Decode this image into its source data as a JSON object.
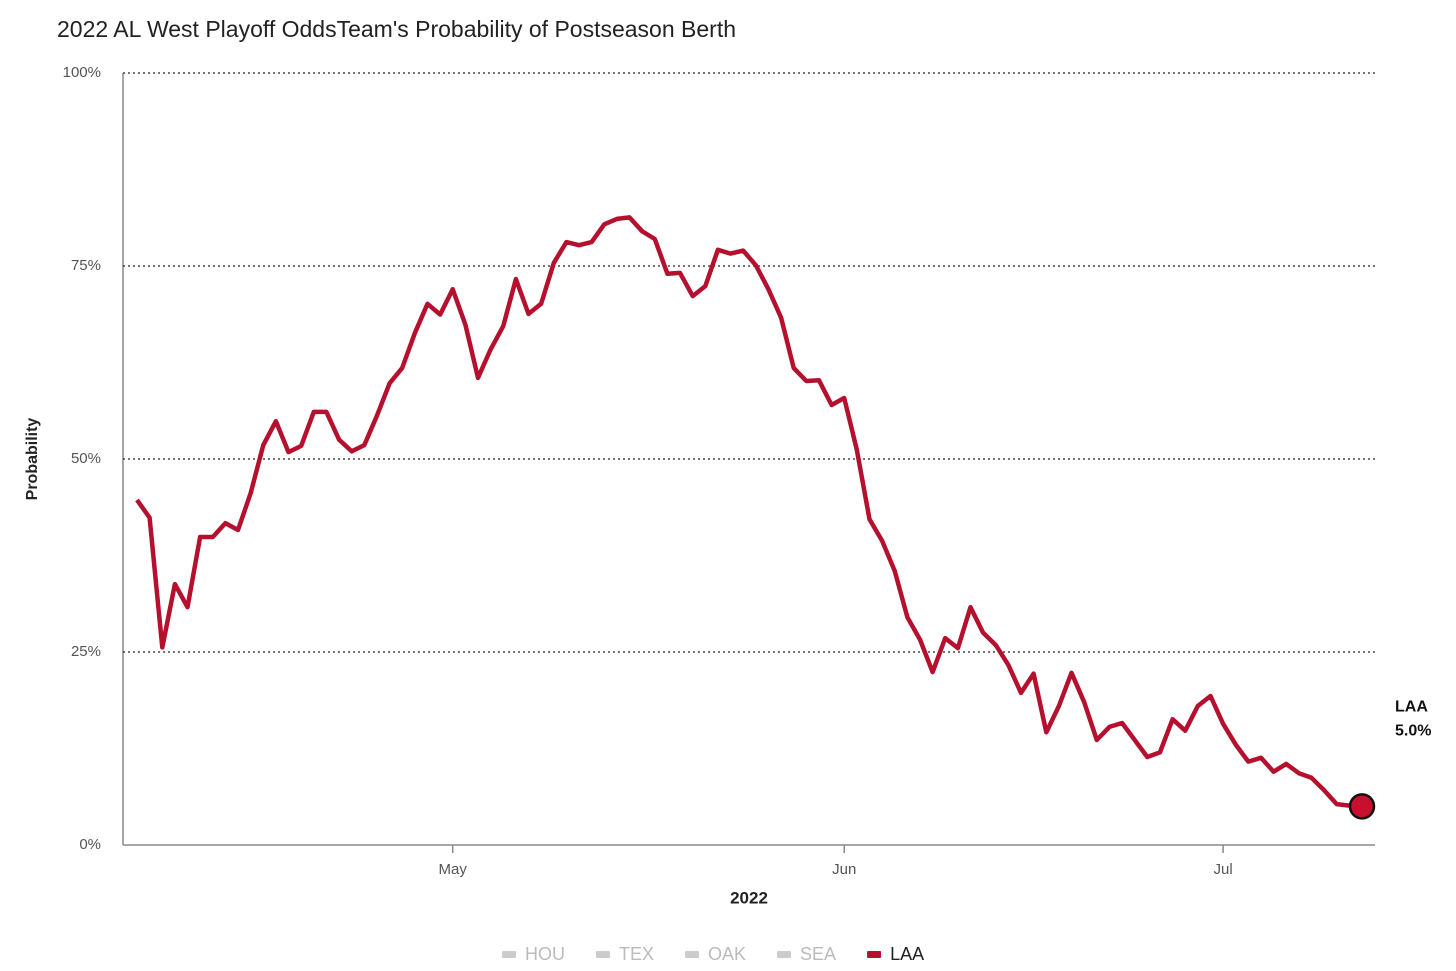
{
  "chart_data": {
    "type": "line",
    "title": "2022 AL West Playoff OddsTeam's Probability of Postseason Berth",
    "y_label": "Probability",
    "x_label": "2022",
    "categories": [
      null,
      null,
      null,
      null,
      null,
      null,
      null,
      null,
      null,
      null,
      null,
      null,
      null,
      null,
      null,
      null,
      null,
      null,
      null,
      null,
      null,
      null,
      null,
      null,
      null,
      "May",
      null,
      null,
      null,
      null,
      null,
      null,
      null,
      null,
      null,
      null,
      null,
      null,
      null,
      null,
      null,
      null,
      null,
      null,
      null,
      null,
      null,
      null,
      null,
      null,
      null,
      null,
      null,
      null,
      null,
      null,
      "Jun",
      null,
      null,
      null,
      null,
      null,
      null,
      null,
      null,
      null,
      null,
      null,
      null,
      null,
      null,
      null,
      null,
      null,
      null,
      null,
      null,
      null,
      null,
      null,
      null,
      null,
      null,
      null,
      null,
      null,
      "Jul",
      null,
      null,
      null,
      null,
      null,
      null,
      null,
      null,
      null,
      null,
      null
    ],
    "series": [
      {
        "name": "LAA",
        "color": "#b5112f",
        "values": [
          44.7,
          42.4,
          25.6,
          33.8,
          30.8,
          39.9,
          39.9,
          41.7,
          40.8,
          45.6,
          51.8,
          54.9,
          50.9,
          51.7,
          56.1,
          56.1,
          52.5,
          51.0,
          51.8,
          55.6,
          59.8,
          61.8,
          66.3,
          70.1,
          68.7,
          72.0,
          67.4,
          60.5,
          64.2,
          67.2,
          73.3,
          68.8,
          70.1,
          75.4,
          78.1,
          77.7,
          78.1,
          80.4,
          81.1,
          81.3,
          79.5,
          78.5,
          74.0,
          74.1,
          71.1,
          72.4,
          77.1,
          76.6,
          77.0,
          75.1,
          72.0,
          68.3,
          61.8,
          60.1,
          60.2,
          57.0,
          57.9,
          51.2,
          42.2,
          39.4,
          35.5,
          29.5,
          26.6,
          22.4,
          26.8,
          25.5,
          30.8,
          27.5,
          25.9,
          23.3,
          19.7,
          22.2,
          14.6,
          18.0,
          22.3,
          18.5,
          13.6,
          15.3,
          15.8,
          13.6,
          11.4,
          12.0,
          16.3,
          14.8,
          18.0,
          19.3,
          15.7,
          13.0,
          10.8,
          11.3,
          9.5,
          10.5,
          9.3,
          8.7,
          7.1,
          5.3,
          5.1,
          5.0
        ]
      }
    ],
    "end_label": "5.0%",
    "hidden_series": [
      {
        "name": "HOU",
        "color": "#cccccc"
      },
      {
        "name": "TEX",
        "color": "#cccccc"
      },
      {
        "name": "OAK",
        "color": "#cccccc"
      },
      {
        "name": "SEA",
        "color": "#cccccc"
      }
    ],
    "ylim": [
      0,
      100
    ],
    "yticks": [
      {
        "value": 0,
        "label": "0%"
      },
      {
        "value": 25,
        "label": "25%"
      },
      {
        "value": 50,
        "label": "50%"
      },
      {
        "value": 75,
        "label": "75%"
      },
      {
        "value": 100,
        "label": "100%"
      }
    ],
    "grid": true
  }
}
